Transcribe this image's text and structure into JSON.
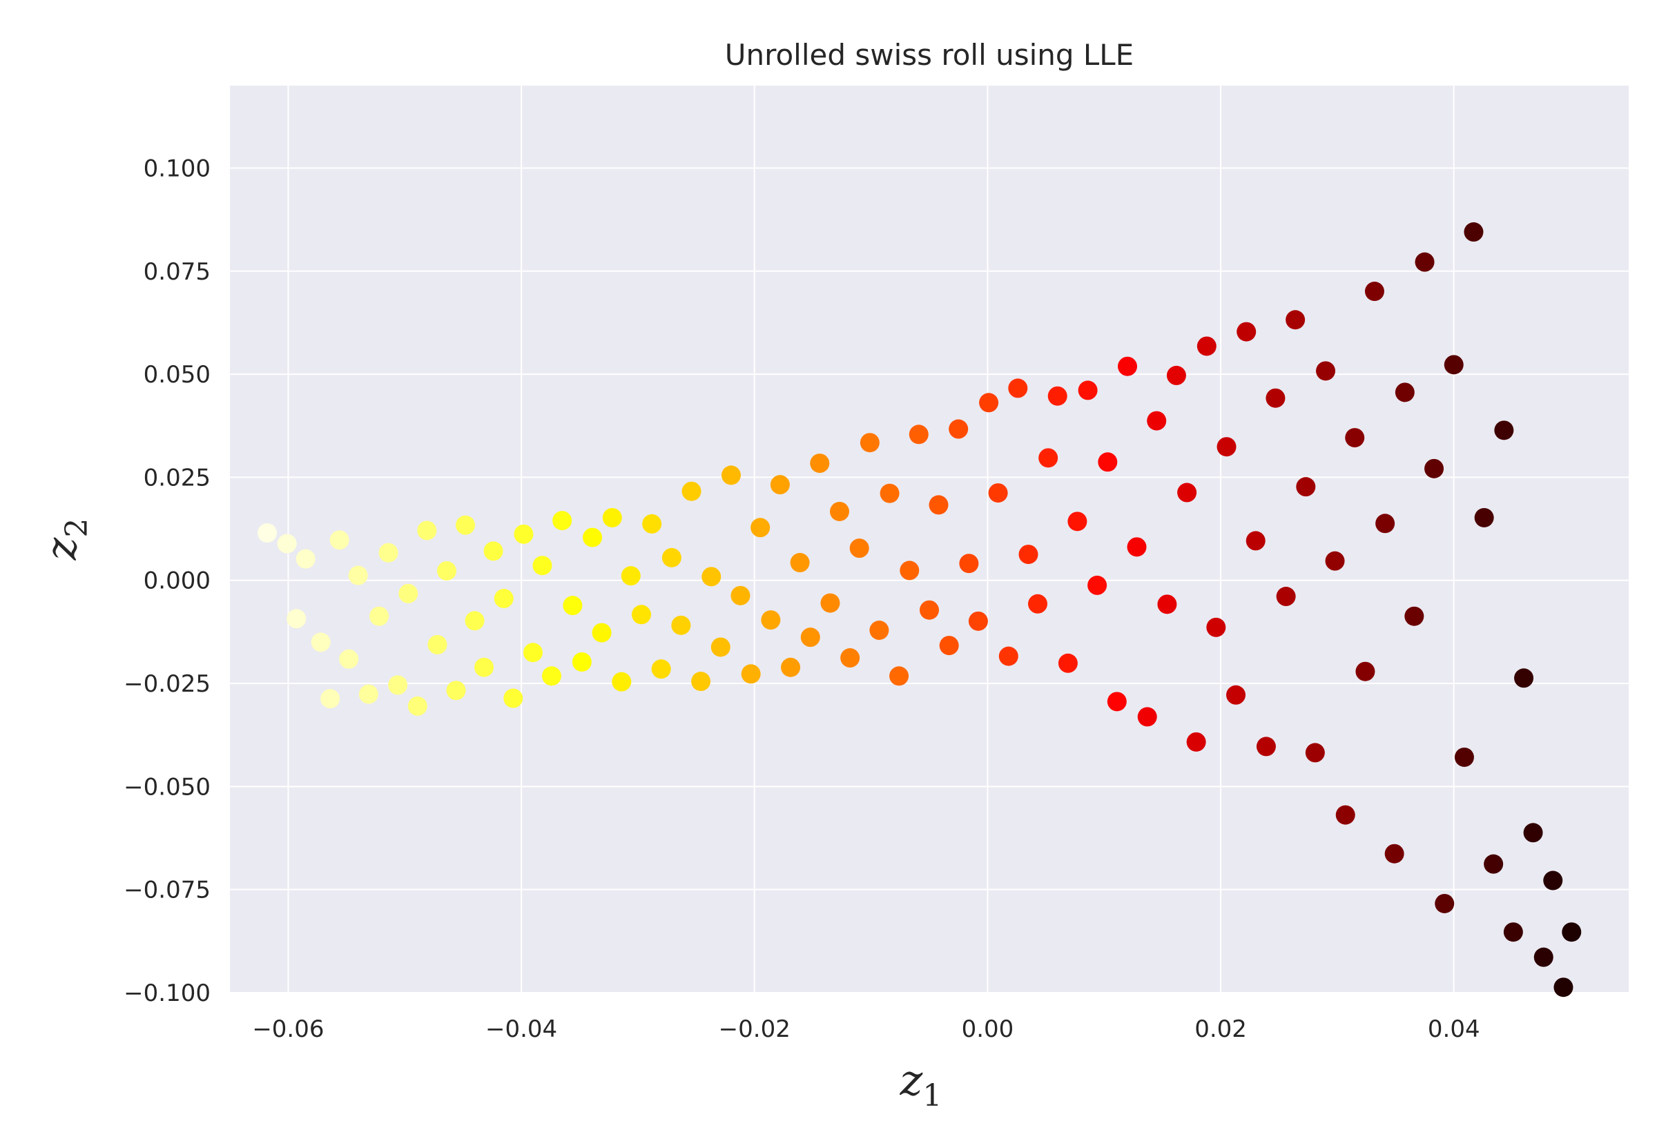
{
  "chart_data": {
    "type": "scatter",
    "title": "Unrolled swiss roll using LLE",
    "xlabel": "z",
    "xlabel_sub": "1",
    "ylabel": "z",
    "ylabel_sub": "2",
    "xlim": [
      -0.065,
      0.055
    ],
    "ylim": [
      -0.1,
      0.12
    ],
    "xticks": [
      -0.06,
      -0.04,
      -0.02,
      0.0,
      0.02,
      0.04
    ],
    "xtick_labels": [
      "−0.06",
      "−0.04",
      "−0.02",
      "0.00",
      "0.02",
      "0.04"
    ],
    "yticks": [
      -0.1,
      -0.075,
      -0.05,
      -0.025,
      0.0,
      0.025,
      0.05,
      0.075,
      0.1
    ],
    "ytick_labels": [
      "−0.100",
      "−0.075",
      "−0.050",
      "−0.025",
      "0.000",
      "0.025",
      "0.050",
      "0.075",
      "0.100"
    ],
    "grid": true,
    "colormap": "hot",
    "background_color": "#eaeaf2",
    "grid_color": "#ffffff",
    "points": [
      {
        "x": -0.0618,
        "y": 0.0115
      },
      {
        "x": -0.0601,
        "y": 0.0089
      },
      {
        "x": -0.0593,
        "y": -0.0093
      },
      {
        "x": -0.0585,
        "y": 0.0052
      },
      {
        "x": -0.0572,
        "y": -0.015
      },
      {
        "x": -0.0564,
        "y": -0.0287
      },
      {
        "x": -0.0556,
        "y": 0.0098
      },
      {
        "x": -0.0548,
        "y": -0.0191
      },
      {
        "x": -0.054,
        "y": 0.0012
      },
      {
        "x": -0.0531,
        "y": -0.0276
      },
      {
        "x": -0.0522,
        "y": -0.0087
      },
      {
        "x": -0.0514,
        "y": 0.0067
      },
      {
        "x": -0.0506,
        "y": -0.0254
      },
      {
        "x": -0.0497,
        "y": -0.0032
      },
      {
        "x": -0.0489,
        "y": -0.0305
      },
      {
        "x": -0.0481,
        "y": 0.0121
      },
      {
        "x": -0.0472,
        "y": -0.0156
      },
      {
        "x": -0.0464,
        "y": 0.0023
      },
      {
        "x": -0.0456,
        "y": -0.0267
      },
      {
        "x": -0.0448,
        "y": 0.0134
      },
      {
        "x": -0.044,
        "y": -0.0098
      },
      {
        "x": -0.0432,
        "y": -0.0211
      },
      {
        "x": -0.0424,
        "y": 0.0071
      },
      {
        "x": -0.0415,
        "y": -0.0044
      },
      {
        "x": -0.0407,
        "y": -0.0286
      },
      {
        "x": -0.0398,
        "y": 0.0112
      },
      {
        "x": -0.039,
        "y": -0.0175
      },
      {
        "x": -0.0382,
        "y": 0.0036
      },
      {
        "x": -0.0374,
        "y": -0.0232
      },
      {
        "x": -0.0365,
        "y": 0.0145
      },
      {
        "x": -0.0356,
        "y": -0.0061
      },
      {
        "x": -0.0348,
        "y": -0.0198
      },
      {
        "x": -0.0339,
        "y": 0.0104
      },
      {
        "x": -0.0331,
        "y": -0.0127
      },
      {
        "x": -0.0322,
        "y": 0.0152
      },
      {
        "x": -0.0314,
        "y": -0.0246
      },
      {
        "x": -0.0306,
        "y": 0.0011
      },
      {
        "x": -0.0297,
        "y": -0.0083
      },
      {
        "x": -0.0288,
        "y": 0.0137
      },
      {
        "x": -0.028,
        "y": -0.0215
      },
      {
        "x": -0.0271,
        "y": 0.0055
      },
      {
        "x": -0.0263,
        "y": -0.0109
      },
      {
        "x": -0.0254,
        "y": 0.0216
      },
      {
        "x": -0.0246,
        "y": -0.0245
      },
      {
        "x": -0.0237,
        "y": 0.0009
      },
      {
        "x": -0.0229,
        "y": -0.0162
      },
      {
        "x": -0.022,
        "y": 0.0255
      },
      {
        "x": -0.0212,
        "y": -0.0037
      },
      {
        "x": -0.0203,
        "y": -0.0227
      },
      {
        "x": -0.0195,
        "y": 0.0128
      },
      {
        "x": -0.0186,
        "y": -0.0096
      },
      {
        "x": -0.0178,
        "y": 0.0232
      },
      {
        "x": -0.0169,
        "y": -0.0211
      },
      {
        "x": -0.0161,
        "y": 0.0043
      },
      {
        "x": -0.0152,
        "y": -0.0138
      },
      {
        "x": -0.0144,
        "y": 0.0284
      },
      {
        "x": -0.0135,
        "y": -0.0055
      },
      {
        "x": -0.0127,
        "y": 0.0167
      },
      {
        "x": -0.0118,
        "y": -0.0188
      },
      {
        "x": -0.011,
        "y": 0.0078
      },
      {
        "x": -0.0101,
        "y": 0.0334
      },
      {
        "x": -0.0093,
        "y": -0.0121
      },
      {
        "x": -0.0084,
        "y": 0.0211
      },
      {
        "x": -0.0076,
        "y": -0.0232
      },
      {
        "x": -0.0067,
        "y": 0.0024
      },
      {
        "x": -0.0059,
        "y": 0.0354
      },
      {
        "x": -0.005,
        "y": -0.0072
      },
      {
        "x": -0.0042,
        "y": 0.0183
      },
      {
        "x": -0.0033,
        "y": -0.0158
      },
      {
        "x": -0.0025,
        "y": 0.0367
      },
      {
        "x": -0.0016,
        "y": 0.0041
      },
      {
        "x": -0.0008,
        "y": -0.0099
      },
      {
        "x": 0.0001,
        "y": 0.0431
      },
      {
        "x": 0.0009,
        "y": 0.0212
      },
      {
        "x": 0.0018,
        "y": -0.0184
      },
      {
        "x": 0.0026,
        "y": 0.0466
      },
      {
        "x": 0.0035,
        "y": 0.0063
      },
      {
        "x": 0.0043,
        "y": -0.0057
      },
      {
        "x": 0.0052,
        "y": 0.0297
      },
      {
        "x": 0.006,
        "y": 0.0447
      },
      {
        "x": 0.0069,
        "y": -0.0201
      },
      {
        "x": 0.0077,
        "y": 0.0143
      },
      {
        "x": 0.0086,
        "y": 0.0461
      },
      {
        "x": 0.0094,
        "y": -0.0012
      },
      {
        "x": 0.0103,
        "y": 0.0287
      },
      {
        "x": 0.0111,
        "y": -0.0294
      },
      {
        "x": 0.012,
        "y": 0.0519
      },
      {
        "x": 0.0128,
        "y": 0.0081
      },
      {
        "x": 0.0137,
        "y": -0.0331
      },
      {
        "x": 0.0145,
        "y": 0.0387
      },
      {
        "x": 0.0154,
        "y": -0.0058
      },
      {
        "x": 0.0162,
        "y": 0.0497
      },
      {
        "x": 0.0171,
        "y": 0.0213
      },
      {
        "x": 0.0179,
        "y": -0.0392
      },
      {
        "x": 0.0188,
        "y": 0.0568
      },
      {
        "x": 0.0196,
        "y": -0.0114
      },
      {
        "x": 0.0205,
        "y": 0.0324
      },
      {
        "x": 0.0213,
        "y": -0.0278
      },
      {
        "x": 0.0222,
        "y": 0.0603
      },
      {
        "x": 0.023,
        "y": 0.0096
      },
      {
        "x": 0.0239,
        "y": -0.0403
      },
      {
        "x": 0.0247,
        "y": 0.0442
      },
      {
        "x": 0.0256,
        "y": -0.0039
      },
      {
        "x": 0.0264,
        "y": 0.0632
      },
      {
        "x": 0.0273,
        "y": 0.0227
      },
      {
        "x": 0.0281,
        "y": -0.0418
      },
      {
        "x": 0.029,
        "y": 0.0508
      },
      {
        "x": 0.0298,
        "y": 0.0047
      },
      {
        "x": 0.0307,
        "y": -0.0569
      },
      {
        "x": 0.0315,
        "y": 0.0346
      },
      {
        "x": 0.0324,
        "y": -0.0221
      },
      {
        "x": 0.0332,
        "y": 0.0701
      },
      {
        "x": 0.0341,
        "y": 0.0138
      },
      {
        "x": 0.0349,
        "y": -0.0663
      },
      {
        "x": 0.0358,
        "y": 0.0456
      },
      {
        "x": 0.0366,
        "y": -0.0087
      },
      {
        "x": 0.0375,
        "y": 0.0772
      },
      {
        "x": 0.0383,
        "y": 0.0271
      },
      {
        "x": 0.0392,
        "y": -0.0784
      },
      {
        "x": 0.04,
        "y": 0.0523
      },
      {
        "x": 0.0409,
        "y": -0.0429
      },
      {
        "x": 0.0417,
        "y": 0.0845
      },
      {
        "x": 0.0426,
        "y": 0.0152
      },
      {
        "x": 0.0434,
        "y": -0.0688
      },
      {
        "x": 0.0443,
        "y": 0.0364
      },
      {
        "x": 0.0451,
        "y": -0.0853
      },
      {
        "x": 0.046,
        "y": -0.0237
      },
      {
        "x": 0.0468,
        "y": -0.0612
      },
      {
        "x": 0.0477,
        "y": -0.0914
      },
      {
        "x": 0.0485,
        "y": -0.0728
      },
      {
        "x": 0.0494,
        "y": -0.0987
      },
      {
        "x": 0.0501,
        "y": -0.0853
      }
    ]
  }
}
